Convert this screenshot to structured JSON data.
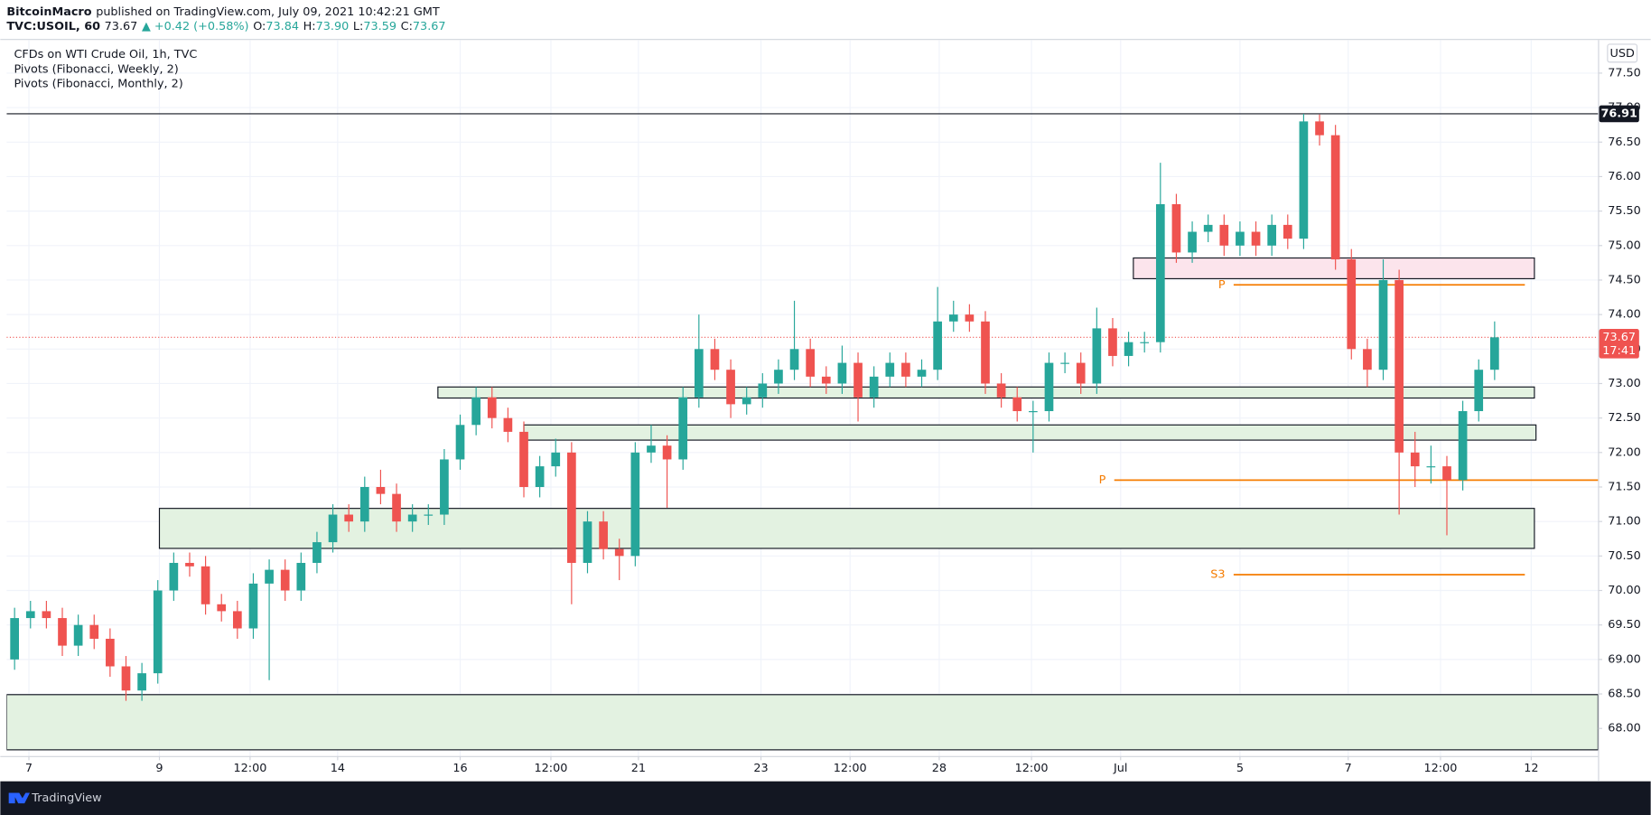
{
  "header": {
    "author": "BitcoinMacro",
    "published": "published on TradingView.com, July 09, 2021 10:42:21 GMT",
    "symbol": "TVC:USOIL, 60",
    "last": "73.67",
    "change": "▲ +0.42 (+0.58%)",
    "ohlc": [
      {
        "label": "O:",
        "value": "73.84"
      },
      {
        "label": "H:",
        "value": "73.90"
      },
      {
        "label": "L:",
        "value": "73.59"
      },
      {
        "label": "C:",
        "value": "73.67"
      }
    ]
  },
  "footer": {
    "brand": "TradingView"
  },
  "chart_data": {
    "type": "candlestick",
    "title": "CFDs on WTI Crude Oil, 1h, TVC",
    "indicators": [
      "Pivots (Fibonacci, Weekly, 2)",
      "Pivots (Fibonacci, Monthly, 2)"
    ],
    "currency": "USD",
    "up_color": "#26a69a",
    "down_color": "#ef5350",
    "grid": true,
    "x": [
      0.5,
      1.5,
      2.5,
      3.5,
      4.5,
      5.5,
      6.5,
      7.5,
      8.5,
      9.5,
      10.5,
      11.5,
      12.5,
      13.5,
      14.5,
      15.5,
      16.5,
      17.5,
      18.5,
      19.5,
      20.5,
      21.5,
      22.5,
      23.5,
      24.5,
      25.5,
      26.5,
      27.5,
      28.5,
      29.5,
      30.5,
      31.5,
      32.5,
      33.5,
      34.5,
      35.5,
      36.5,
      37.5,
      38.5,
      39.5,
      40.5,
      41.5,
      42.5,
      43.5,
      44.5,
      45.5,
      46.5,
      47.5,
      48.5,
      49.5,
      50.5,
      51.5,
      52.5,
      53.5,
      54.5,
      55.5,
      56.5,
      57.5,
      58.5,
      59.5,
      60.5,
      61.5,
      62.5,
      63.5,
      64.5,
      65.5,
      66.5,
      67.5,
      68.5,
      69.5,
      70.5,
      71.5,
      72.5,
      73.5,
      74.5,
      75.5,
      76.5,
      77.5,
      78.5,
      79.5,
      80.5,
      81.5,
      82.5,
      83.5,
      84.5,
      85.5,
      86.5,
      87.5,
      88.5,
      89.5,
      90.5,
      91.5,
      92.5,
      93.5
    ],
    "open": [
      69.0,
      69.6,
      69.7,
      69.6,
      69.2,
      69.5,
      69.3,
      68.9,
      68.55,
      68.8,
      70.0,
      70.4,
      70.35,
      69.8,
      69.7,
      69.45,
      70.1,
      70.3,
      70.0,
      70.4,
      70.7,
      71.1,
      71.0,
      71.5,
      71.4,
      71.0,
      71.1,
      71.1,
      71.9,
      72.4,
      72.8,
      72.5,
      72.3,
      71.5,
      71.8,
      72.0,
      70.4,
      71.0,
      70.6,
      70.5,
      72.0,
      72.1,
      71.9,
      72.8,
      73.5,
      73.2,
      72.7,
      72.8,
      73.0,
      73.2,
      73.5,
      73.1,
      73.0,
      73.3,
      72.8,
      73.1,
      73.3,
      73.1,
      73.2,
      73.9,
      74.0,
      73.9,
      73.0,
      72.8,
      72.6,
      72.6,
      73.3,
      73.3,
      73.0,
      73.8,
      73.4,
      73.6,
      73.6,
      75.6,
      74.9,
      75.2,
      75.3,
      75.0,
      75.2,
      75.0,
      75.3,
      75.1,
      76.8,
      76.6,
      74.8,
      73.5,
      73.2,
      74.5,
      72.0,
      71.8,
      71.8,
      71.6,
      72.6,
      73.2
    ],
    "high": [
      69.75,
      69.85,
      69.85,
      69.75,
      69.65,
      69.65,
      69.45,
      69.05,
      68.95,
      70.15,
      70.55,
      70.55,
      70.5,
      69.95,
      69.85,
      70.25,
      70.45,
      70.45,
      70.55,
      70.85,
      71.25,
      71.25,
      71.65,
      71.75,
      71.55,
      71.25,
      71.25,
      72.05,
      72.55,
      72.95,
      72.95,
      72.65,
      72.45,
      71.95,
      72.2,
      72.15,
      71.15,
      71.15,
      70.75,
      72.15,
      72.4,
      72.25,
      72.95,
      74.0,
      73.65,
      73.35,
      72.95,
      73.15,
      73.35,
      74.2,
      73.65,
      73.25,
      73.55,
      73.45,
      73.25,
      73.45,
      73.45,
      73.35,
      74.4,
      74.2,
      74.15,
      74.05,
      73.15,
      72.95,
      72.75,
      73.45,
      73.45,
      73.45,
      74.1,
      73.95,
      73.75,
      73.75,
      76.2,
      75.75,
      75.35,
      75.45,
      75.45,
      75.35,
      75.35,
      75.45,
      75.45,
      76.91,
      76.9,
      76.75,
      74.95,
      73.65,
      74.8,
      74.65,
      72.3,
      72.1,
      71.95,
      72.75,
      73.35,
      73.9
    ],
    "low": [
      68.85,
      69.45,
      69.45,
      69.05,
      69.05,
      69.15,
      68.75,
      68.4,
      68.4,
      68.65,
      69.85,
      70.2,
      69.65,
      69.55,
      69.3,
      69.3,
      68.7,
      69.85,
      69.85,
      70.25,
      70.55,
      70.85,
      70.85,
      71.25,
      70.85,
      70.85,
      70.95,
      70.95,
      71.75,
      72.25,
      72.35,
      72.15,
      71.35,
      71.35,
      71.65,
      69.8,
      70.25,
      70.45,
      70.15,
      70.35,
      71.85,
      71.2,
      71.75,
      72.65,
      73.05,
      72.5,
      72.55,
      72.65,
      72.85,
      73.05,
      72.95,
      72.85,
      72.85,
      72.45,
      72.65,
      72.95,
      72.95,
      72.95,
      73.05,
      73.75,
      73.75,
      72.85,
      72.65,
      72.45,
      72.0,
      72.45,
      73.15,
      72.85,
      72.85,
      73.25,
      73.25,
      73.45,
      73.45,
      74.75,
      74.75,
      75.05,
      74.85,
      74.85,
      74.85,
      74.85,
      74.95,
      74.95,
      76.45,
      74.65,
      73.35,
      72.95,
      73.05,
      71.1,
      71.5,
      71.55,
      70.8,
      71.45,
      72.45,
      73.05
    ],
    "close": [
      69.6,
      69.7,
      69.6,
      69.2,
      69.5,
      69.3,
      68.9,
      68.55,
      68.8,
      70.0,
      70.4,
      70.35,
      69.8,
      69.7,
      69.45,
      70.1,
      70.3,
      70.0,
      70.4,
      70.7,
      71.1,
      71.0,
      71.5,
      71.4,
      71.0,
      71.1,
      71.1,
      71.9,
      72.4,
      72.8,
      72.5,
      72.3,
      71.5,
      71.8,
      72.0,
      70.4,
      71.0,
      70.6,
      70.5,
      72.0,
      72.1,
      71.9,
      72.8,
      73.5,
      73.2,
      72.7,
      72.8,
      73.0,
      73.2,
      73.5,
      73.1,
      73.0,
      73.3,
      72.8,
      73.1,
      73.3,
      73.1,
      73.2,
      73.9,
      74.0,
      73.9,
      73.0,
      72.8,
      72.6,
      72.6,
      73.3,
      73.3,
      73.0,
      73.8,
      73.4,
      73.6,
      73.6,
      75.6,
      74.9,
      75.2,
      75.3,
      75.0,
      75.2,
      75.0,
      75.3,
      75.1,
      76.8,
      76.6,
      74.8,
      73.5,
      73.2,
      74.5,
      72.0,
      71.8,
      71.8,
      71.6,
      72.6,
      73.2,
      73.67
    ],
    "xlim": [
      0,
      100
    ],
    "xticks": [
      {
        "value": 1.4,
        "label": "7"
      },
      {
        "value": 9.6,
        "label": "9"
      },
      {
        "value": 15.3,
        "label": "12:00"
      },
      {
        "value": 20.8,
        "label": "14"
      },
      {
        "value": 28.5,
        "label": "16"
      },
      {
        "value": 34.2,
        "label": "12:00"
      },
      {
        "value": 39.7,
        "label": "21"
      },
      {
        "value": 47.4,
        "label": "23"
      },
      {
        "value": 53.0,
        "label": "12:00"
      },
      {
        "value": 58.6,
        "label": "28"
      },
      {
        "value": 64.4,
        "label": "12:00"
      },
      {
        "value": 70.0,
        "label": "Jul"
      },
      {
        "value": 77.5,
        "label": "5"
      },
      {
        "value": 84.3,
        "label": "7"
      },
      {
        "value": 90.1,
        "label": "12:00"
      },
      {
        "value": 95.8,
        "label": "12"
      }
    ],
    "ylim": [
      67.6,
      77.98
    ],
    "yticks": [
      {
        "value": 68,
        "label": "68.00"
      },
      {
        "value": 68.5,
        "label": "68.50"
      },
      {
        "value": 69,
        "label": "69.00"
      },
      {
        "value": 69.5,
        "label": "69.50"
      },
      {
        "value": 70,
        "label": "70.00"
      },
      {
        "value": 70.5,
        "label": "70.50"
      },
      {
        "value": 71,
        "label": "71.00"
      },
      {
        "value": 71.5,
        "label": "71.50"
      },
      {
        "value": 72,
        "label": "72.00"
      },
      {
        "value": 72.5,
        "label": "72.50"
      },
      {
        "value": 73,
        "label": "73.00"
      },
      {
        "value": 73.5,
        "label": "73.50"
      },
      {
        "value": 74,
        "label": "74.00"
      },
      {
        "value": 74.5,
        "label": "74.50"
      },
      {
        "value": 75,
        "label": "75.00"
      },
      {
        "value": 75.5,
        "label": "75.50"
      },
      {
        "value": 76,
        "label": "76.00"
      },
      {
        "value": 76.5,
        "label": "76.50"
      },
      {
        "value": 77,
        "label": "77.00"
      },
      {
        "value": 77.5,
        "label": "77.50"
      }
    ],
    "zones": [
      {
        "top": 74.82,
        "bottom": 74.52,
        "x0": 70.8,
        "x1": 96.0,
        "color": "#fce4ec"
      },
      {
        "top": 72.95,
        "bottom": 72.79,
        "x0": 27.1,
        "x1": 96.0,
        "color": "#e3f2e1"
      },
      {
        "top": 72.4,
        "bottom": 72.18,
        "x0": 32.5,
        "x1": 96.1,
        "color": "#e3f2e1"
      },
      {
        "top": 71.19,
        "bottom": 70.61,
        "x0": 9.6,
        "x1": 96.0,
        "color": "#e3f2e1"
      },
      {
        "top": 68.49,
        "bottom": 67.69,
        "x0": 0,
        "x1": 100,
        "color": "#e3f2e1"
      }
    ],
    "levels": [
      {
        "label": "P",
        "value": 74.43,
        "x0": 77.1,
        "x1": 95.4,
        "color": "#f57c00"
      },
      {
        "label": "P",
        "value": 71.6,
        "x0": 69.6,
        "x1": 100,
        "color": "#f57c00"
      },
      {
        "label": "S3",
        "value": 70.23,
        "x0": 77.1,
        "x1": 95.4,
        "color": "#f57c00"
      }
    ],
    "hline": 76.91,
    "last_price": 73.67,
    "countdown": "17:41"
  }
}
